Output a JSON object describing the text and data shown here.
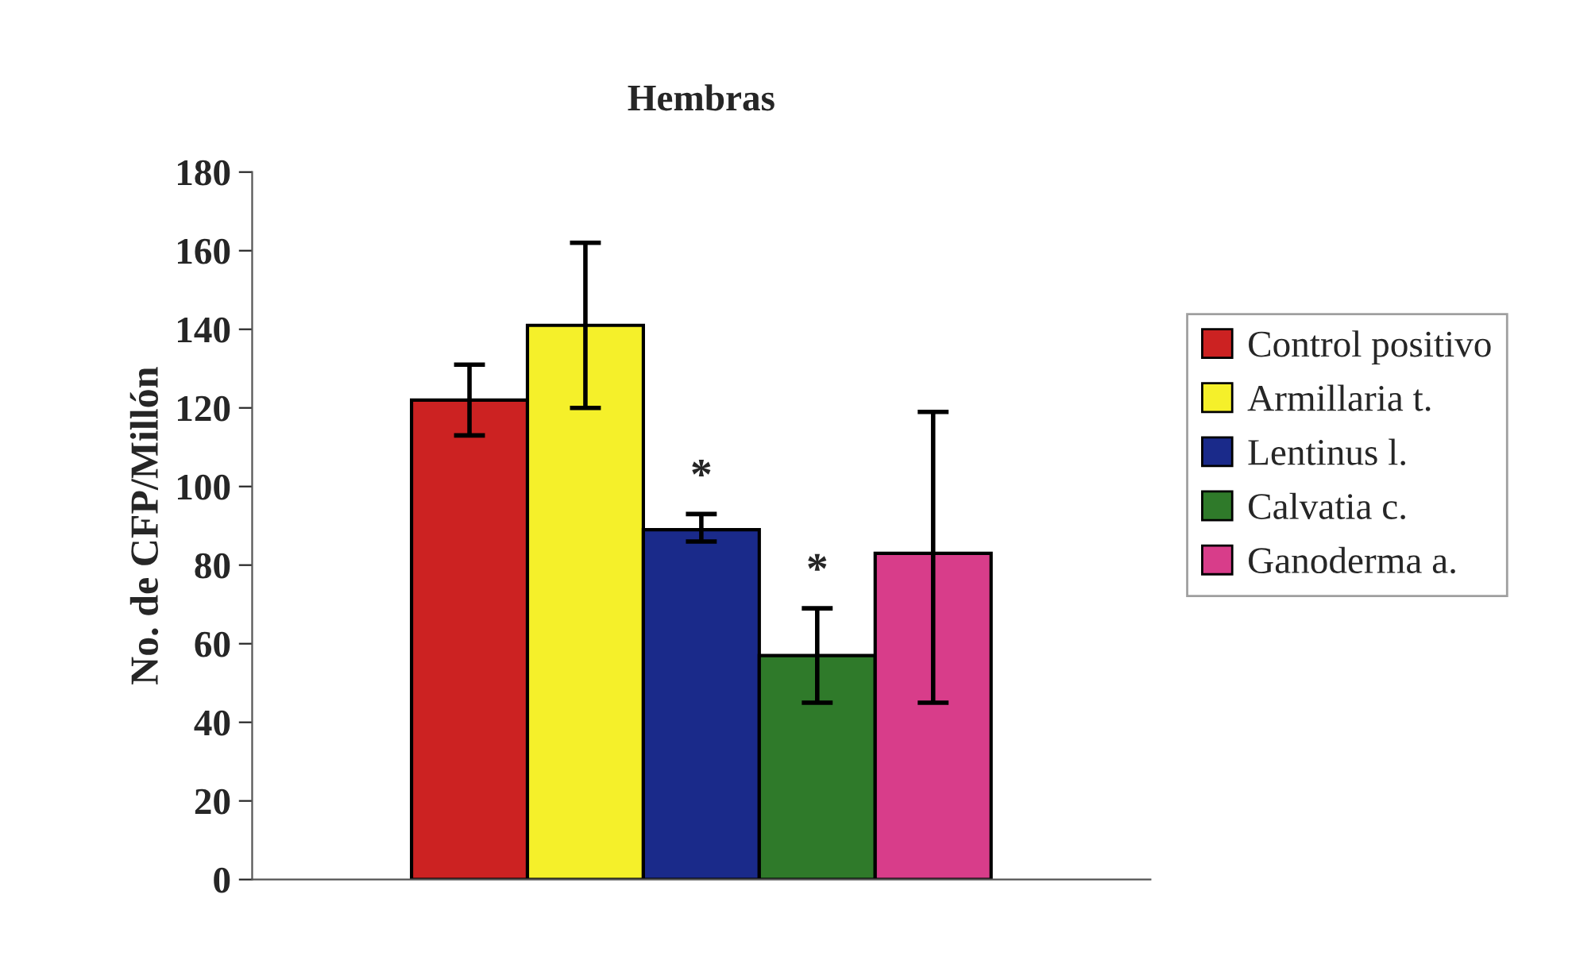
{
  "chart_data": {
    "type": "bar",
    "title": "Hembras",
    "ylabel": "No. de CFP/Millón",
    "categories": [
      null
    ],
    "series": [
      {
        "name": "Control positivo",
        "color": "#cc2222",
        "values": [
          122
        ],
        "errors": [
          [
            113,
            131
          ]
        ]
      },
      {
        "name": "Armillaria t.",
        "color": "#f5f02a",
        "values": [
          141
        ],
        "errors": [
          [
            120,
            162
          ]
        ]
      },
      {
        "name": "Lentinus l.",
        "color": "#1a2a8a",
        "values": [
          89
        ],
        "errors": [
          [
            86,
            93
          ]
        ],
        "value_labels": [
          "*"
        ]
      },
      {
        "name": "Calvatia c.",
        "color": "#2f7a2a",
        "values": [
          57
        ],
        "errors": [
          [
            45,
            69
          ]
        ],
        "value_labels": [
          "*"
        ]
      },
      {
        "name": "Ganoderma a.",
        "color": "#d83d8a",
        "values": [
          83
        ],
        "errors": [
          [
            45,
            119
          ]
        ]
      }
    ],
    "ylim": [
      0,
      180
    ],
    "yticks": [
      0,
      20,
      40,
      60,
      80,
      100,
      120,
      140,
      160,
      180
    ],
    "legend": "right",
    "grid": false
  }
}
